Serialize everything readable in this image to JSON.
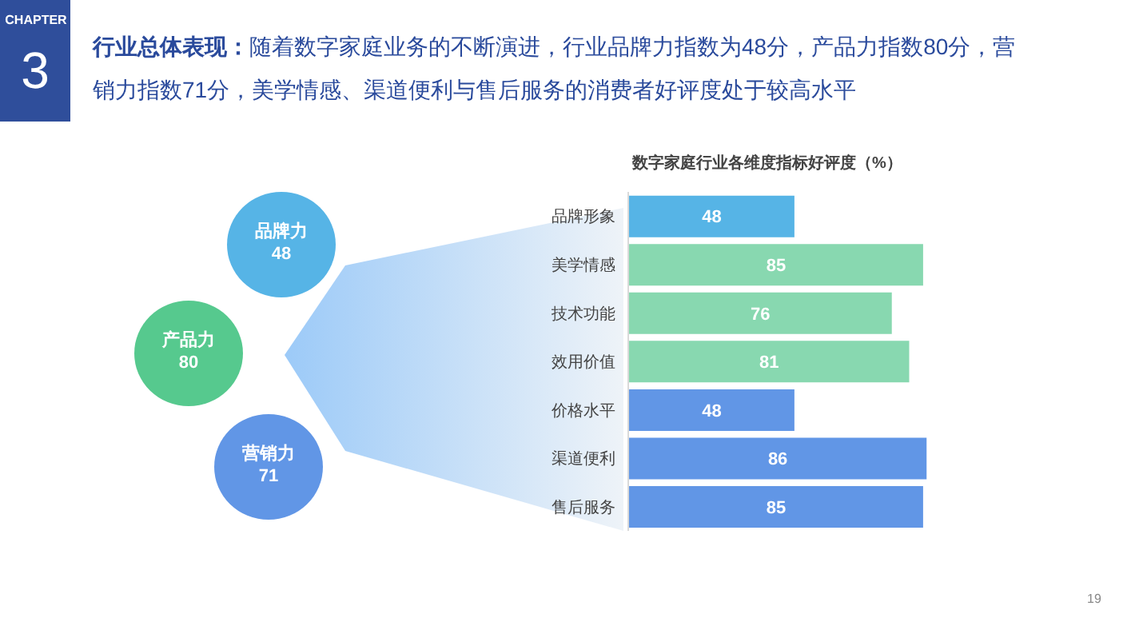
{
  "chart_data": {
    "type": "bar",
    "orientation": "horizontal",
    "title": "数字家庭行业各维度指标好评度（%）",
    "categories": [
      "品牌形象",
      "美学情感",
      "技术功能",
      "效用价值",
      "价格水平",
      "渠道便利",
      "售后服务"
    ],
    "values": [
      48,
      85,
      76,
      81,
      48,
      86,
      85
    ],
    "colors": [
      "#56b4e6",
      "#88d8b0",
      "#88d8b0",
      "#88d8b0",
      "#6196e6",
      "#6196e6",
      "#6196e6"
    ],
    "data_labels": true,
    "tick_labels": "y",
    "annotations": [
      "CHAPTER",
      "3",
      "行业总体表现：",
      "随着数字家庭业务的不断演进，行业品牌力指数为48分，产品力指数80分，营销力指数71分，美学情感、渠道便利与售后服务的消费者好评度处于较高水平",
      "品牌力",
      "48",
      "产品力",
      "80",
      "营销力",
      "71",
      "19"
    ]
  }
}
